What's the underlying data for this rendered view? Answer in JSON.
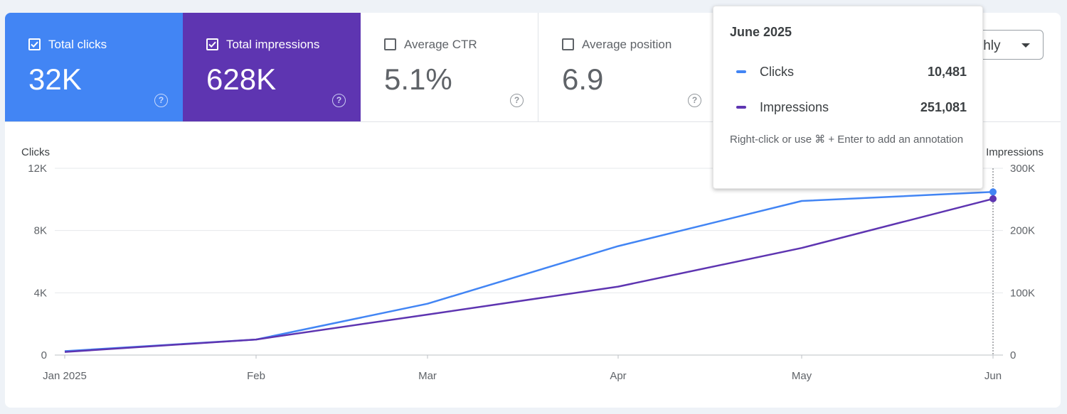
{
  "cards": [
    {
      "label": "Total clicks",
      "value": "32K",
      "checked": true
    },
    {
      "label": "Total impressions",
      "value": "628K",
      "checked": true
    },
    {
      "label": "Average CTR",
      "value": "5.1%",
      "checked": false
    },
    {
      "label": "Average position",
      "value": "6.9",
      "checked": false
    }
  ],
  "help_glyph": "?",
  "dropdown": {
    "value": "Monthly"
  },
  "colors": {
    "clicks": "#4285f4",
    "impressions": "#5e35b1",
    "grid": "#e6e8eb",
    "axis": "#5f6368"
  },
  "tooltip": {
    "title": "June 2025",
    "rows": [
      {
        "name": "Clicks",
        "value": "10,481"
      },
      {
        "name": "Impressions",
        "value": "251,081"
      }
    ],
    "hint": "Right-click or use ⌘ + Enter to add an annotation"
  },
  "chart_data": {
    "type": "line",
    "x": [
      "Jan 2025",
      "Feb",
      "Mar",
      "Apr",
      "May",
      "Jun"
    ],
    "left_axis": {
      "title": "Clicks",
      "ticks": [
        "0",
        "4K",
        "8K",
        "12K"
      ],
      "tick_values": [
        0,
        4000,
        8000,
        12000
      ],
      "range": [
        0,
        12000
      ]
    },
    "right_axis": {
      "title": "Impressions",
      "ticks": [
        "0",
        "100K",
        "200K",
        "300K"
      ],
      "tick_values": [
        0,
        100000,
        200000,
        300000
      ],
      "range": [
        0,
        300000
      ]
    },
    "series": [
      {
        "name": "Clicks",
        "axis": "left",
        "values": [
          250,
          1000,
          3300,
          7000,
          9900,
          10481
        ]
      },
      {
        "name": "Impressions",
        "axis": "right",
        "values": [
          5000,
          25000,
          65000,
          110000,
          172000,
          251081
        ]
      }
    ],
    "highlight_index": 5,
    "grid": true
  }
}
